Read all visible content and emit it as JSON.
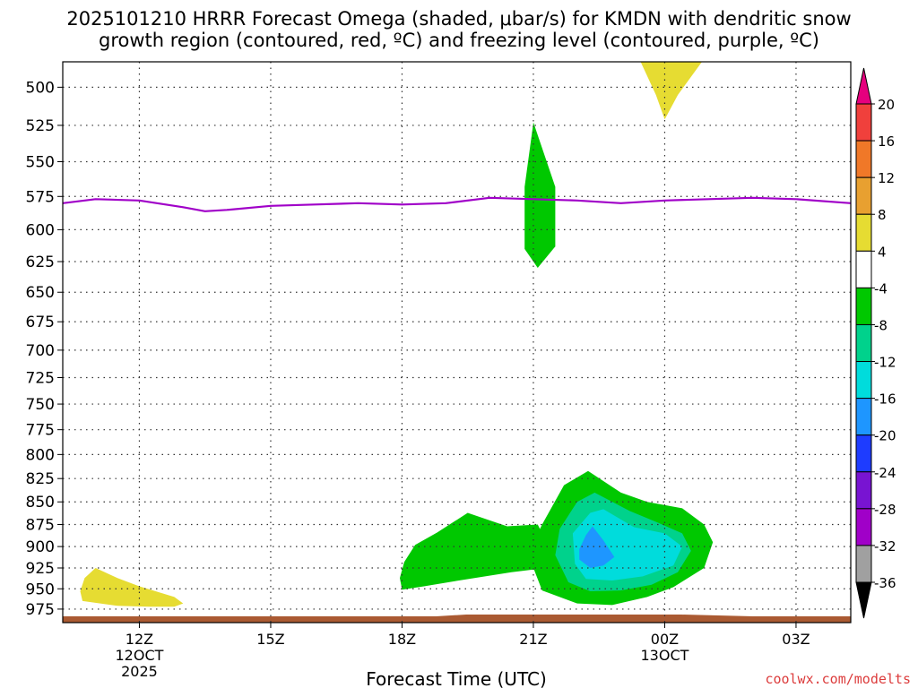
{
  "chart_data": {
    "type": "heatmap",
    "title_line1": "2025101210 HRRR Forecast Omega (shaded, μbar/s) for KMDN with dendritic snow",
    "title_line2": "growth region (contoured, red, ºC) and freezing level (contoured, purple, ºC)",
    "xlabel": "Forecast Time (UTC)",
    "ylabel": "",
    "xlim_hours": [
      -1.75,
      16.25
    ],
    "ylim_hPa": [
      484,
      992
    ],
    "x_ticks": [
      {
        "hour": 0,
        "label": "12Z",
        "sub1": "12OCT",
        "sub2": "2025"
      },
      {
        "hour": 3,
        "label": "15Z",
        "sub1": "",
        "sub2": ""
      },
      {
        "hour": 6,
        "label": "18Z",
        "sub1": "",
        "sub2": ""
      },
      {
        "hour": 9,
        "label": "21Z",
        "sub1": "",
        "sub2": ""
      },
      {
        "hour": 12,
        "label": "00Z",
        "sub1": "13OCT",
        "sub2": ""
      },
      {
        "hour": 15,
        "label": "03Z",
        "sub1": "",
        "sub2": ""
      }
    ],
    "y_ticks": [
      500,
      525,
      550,
      575,
      600,
      625,
      650,
      675,
      700,
      725,
      750,
      775,
      800,
      825,
      850,
      875,
      900,
      925,
      950,
      975
    ],
    "grid": true,
    "colorbar": {
      "label_values": [
        "20",
        "16",
        "12",
        "8",
        "4",
        "-4",
        "-8",
        "-12",
        "-16",
        "-20",
        "-24",
        "-28",
        "-32",
        "-36"
      ],
      "segments": [
        {
          "range": ">20",
          "color": "#e6007e"
        },
        {
          "range": "16 to 20",
          "color": "#f0403c"
        },
        {
          "range": "12 to 16",
          "color": "#f07828"
        },
        {
          "range": "8 to 12",
          "color": "#e8a030"
        },
        {
          "range": "4 to 8",
          "color": "#e6dc32"
        },
        {
          "range": "-4 to 4",
          "color": "#ffffff"
        },
        {
          "range": "-8 to -4",
          "color": "#00c800"
        },
        {
          "range": "-12 to -8",
          "color": "#00d28c"
        },
        {
          "range": "-16 to -12",
          "color": "#00dcdc"
        },
        {
          "range": "-20 to -16",
          "color": "#1e96ff"
        },
        {
          "range": "-24 to -20",
          "color": "#1e3cff"
        },
        {
          "range": "-28 to -24",
          "color": "#7814d2"
        },
        {
          "range": "-32 to -28",
          "color": "#a000c8"
        },
        {
          "range": "-36 to -32",
          "color": "#a0a0a0"
        },
        {
          "range": "<-36",
          "color": "#000000"
        }
      ]
    },
    "series": [
      {
        "name": "Freezing level (0 ºC)",
        "color": "#a000c8",
        "points": [
          [
            -1.75,
            580
          ],
          [
            -1,
            577
          ],
          [
            0,
            578
          ],
          [
            1,
            583
          ],
          [
            1.5,
            586
          ],
          [
            2,
            585
          ],
          [
            3,
            582
          ],
          [
            4,
            581
          ],
          [
            5,
            580
          ],
          [
            6,
            581
          ],
          [
            7,
            580
          ],
          [
            8,
            576
          ],
          [
            9,
            577
          ],
          [
            10,
            578
          ],
          [
            11,
            580
          ],
          [
            12,
            578
          ],
          [
            13,
            577
          ],
          [
            14,
            576
          ],
          [
            15,
            577
          ],
          [
            16.25,
            580
          ]
        ]
      }
    ],
    "shaded_regions": [
      {
        "name": "omega 4 to 8 (lower left)",
        "color": "#e6dc32",
        "points": [
          [
            -1.35,
            953
          ],
          [
            -1.25,
            937
          ],
          [
            -1.0,
            925
          ],
          [
            -0.5,
            937
          ],
          [
            0,
            947
          ],
          [
            0.8,
            960
          ],
          [
            1.0,
            968
          ],
          [
            0.8,
            972
          ],
          [
            0.2,
            972
          ],
          [
            -0.5,
            971
          ],
          [
            -1.3,
            965
          ]
        ]
      },
      {
        "name": "omega 4 to 8 (top)",
        "color": "#e6dc32",
        "points": [
          [
            11.45,
            484
          ],
          [
            12.85,
            484
          ],
          [
            12.3,
            505
          ],
          [
            12.0,
            521
          ],
          [
            11.8,
            505
          ]
        ]
      },
      {
        "name": "omega -8 to -4 (upper)",
        "color": "#00c800",
        "points": [
          [
            9.0,
            523
          ],
          [
            9.5,
            568
          ],
          [
            9.5,
            613
          ],
          [
            9.1,
            630
          ],
          [
            8.8,
            615
          ],
          [
            8.8,
            568
          ]
        ]
      },
      {
        "name": "omega -8 to -4 (left lobe)",
        "color": "#00c800",
        "points": [
          [
            5.95,
            937
          ],
          [
            6.05,
            918
          ],
          [
            6.3,
            898
          ],
          [
            6.8,
            884
          ],
          [
            7.5,
            862
          ],
          [
            8.4,
            877
          ],
          [
            9.1,
            875
          ],
          [
            9.3,
            895
          ],
          [
            9.3,
            925
          ],
          [
            8.5,
            930
          ],
          [
            7.3,
            940
          ],
          [
            6.5,
            947
          ],
          [
            6.0,
            951
          ]
        ]
      },
      {
        "name": "omega -8 to -4 (right lobe)",
        "color": "#00c800",
        "points": [
          [
            9.2,
            875
          ],
          [
            9.7,
            832
          ],
          [
            10.25,
            817
          ],
          [
            11.0,
            840
          ],
          [
            11.6,
            850
          ],
          [
            12.4,
            857
          ],
          [
            12.9,
            875
          ],
          [
            13.1,
            895
          ],
          [
            12.9,
            925
          ],
          [
            12.2,
            948
          ],
          [
            11.6,
            960
          ],
          [
            10.8,
            970
          ],
          [
            10.0,
            968
          ],
          [
            9.2,
            952
          ],
          [
            9.0,
            925
          ],
          [
            9.0,
            895
          ]
        ]
      },
      {
        "name": "omega -12 to -8",
        "color": "#00d28c",
        "points": [
          [
            9.6,
            880
          ],
          [
            10.0,
            850
          ],
          [
            10.4,
            840
          ],
          [
            11.2,
            860
          ],
          [
            11.8,
            872
          ],
          [
            12.4,
            885
          ],
          [
            12.6,
            905
          ],
          [
            12.3,
            930
          ],
          [
            11.7,
            945
          ],
          [
            11.0,
            952
          ],
          [
            10.3,
            953
          ],
          [
            9.8,
            942
          ],
          [
            9.5,
            910
          ]
        ]
      },
      {
        "name": "omega -16 to -12",
        "color": "#00dcdc",
        "points": [
          [
            9.9,
            885
          ],
          [
            10.3,
            862
          ],
          [
            10.6,
            858
          ],
          [
            11.3,
            878
          ],
          [
            12.0,
            885
          ],
          [
            12.4,
            900
          ],
          [
            12.2,
            922
          ],
          [
            11.5,
            935
          ],
          [
            10.8,
            940
          ],
          [
            10.2,
            938
          ],
          [
            9.95,
            920
          ]
        ]
      },
      {
        "name": "omega -20 to -16",
        "color": "#1e96ff",
        "points": [
          [
            10.05,
            903
          ],
          [
            10.2,
            887
          ],
          [
            10.35,
            877
          ],
          [
            10.6,
            893
          ],
          [
            10.85,
            912
          ],
          [
            10.6,
            922
          ],
          [
            10.3,
            925
          ],
          [
            10.05,
            915
          ]
        ]
      }
    ],
    "surface_band": {
      "color": "#aa5a32",
      "label": "terrain"
    }
  },
  "credit": "coolwx.com/modelts"
}
